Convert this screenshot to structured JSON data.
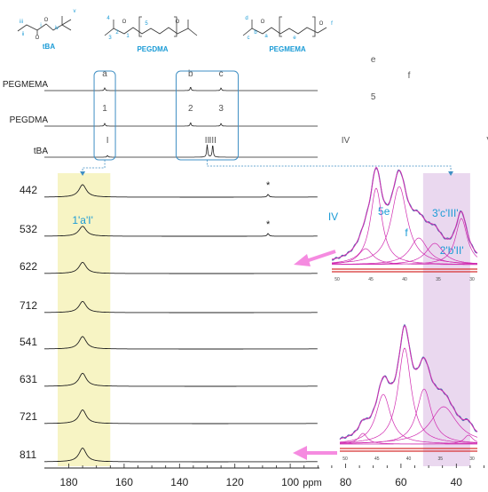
{
  "chart_data": {
    "type": "line",
    "xlabel": "ppm",
    "x_ticks": [
      180,
      160,
      140,
      120,
      100,
      80,
      60,
      40
    ],
    "xlim": [
      190,
      20
    ],
    "monomers": [
      {
        "name": "tBA",
        "atoms": [
          "i",
          "ii",
          "iii",
          "iv",
          "v"
        ]
      },
      {
        "name": "PEGDMA",
        "atoms": [
          "1",
          "2",
          "3",
          "4",
          "5"
        ]
      },
      {
        "name": "PEGMEMA",
        "atoms": [
          "a",
          "b",
          "c",
          "d",
          "e",
          "f"
        ]
      }
    ],
    "reference_spectra": [
      {
        "name": "PEGMEMA",
        "peaks": [
          {
            "label": "a",
            "ppm": 167
          },
          {
            "label": "b",
            "ppm": 136
          },
          {
            "label": "c",
            "ppm": 125
          },
          {
            "label": "e",
            "ppm": 70
          },
          {
            "label": "f",
            "ppm": 59
          },
          {
            "label": "d",
            "ppm": 18
          }
        ]
      },
      {
        "name": "PEGDMA",
        "peaks": [
          {
            "label": "1",
            "ppm": 167
          },
          {
            "label": "2",
            "ppm": 136
          },
          {
            "label": "3",
            "ppm": 125
          },
          {
            "label": "5",
            "ppm": 70
          },
          {
            "label": "4",
            "ppm": 18
          }
        ]
      },
      {
        "name": "tBA",
        "peaks": [
          {
            "label": "I",
            "ppm": 166
          },
          {
            "label": "II",
            "ppm": 130
          },
          {
            "label": "III",
            "ppm": 128
          },
          {
            "label": "IV",
            "ppm": 80
          },
          {
            "label": "V",
            "ppm": 28
          }
        ]
      }
    ],
    "sample_spectra": [
      "442",
      "532",
      "622",
      "712",
      "541",
      "631",
      "721",
      "811"
    ],
    "starred_samples": [
      "442",
      "532"
    ],
    "star_ppm": 108,
    "assignments": [
      {
        "label": "1'a'I'",
        "ppm": 175
      },
      {
        "label": "IV",
        "ppm": 80
      },
      {
        "label": "5e",
        "ppm": 70
      },
      {
        "label": "f",
        "ppm": 59
      },
      {
        "label": "3'c'III'",
        "ppm": 44
      },
      {
        "label": "2'b'II'",
        "ppm": 41
      },
      {
        "label": "V",
        "ppm": 28
      }
    ],
    "yellow_band_ppm": [
      184,
      165
    ],
    "pink_band_ppm": [
      52,
      35
    ],
    "inset_x_ticks": [
      50,
      45,
      40,
      35,
      30
    ],
    "insets": [
      {
        "sample": "532",
        "fit_peaks_ppm": [
          48.5,
          45,
          41.5,
          38.5,
          35,
          31
        ]
      },
      {
        "sample": "811",
        "fit_peaks_ppm": [
          46,
          42,
          38.5,
          36,
          31
        ]
      }
    ],
    "colors": {
      "label_blue": "#1a9bd6",
      "yellow_band": "#f7f4c4",
      "pink_band": "#ead8ef",
      "fit_curve": "#d02bb0",
      "experimental": "#4a6fb0",
      "baseline": "#d83030",
      "arrow": "#f58be0"
    }
  }
}
